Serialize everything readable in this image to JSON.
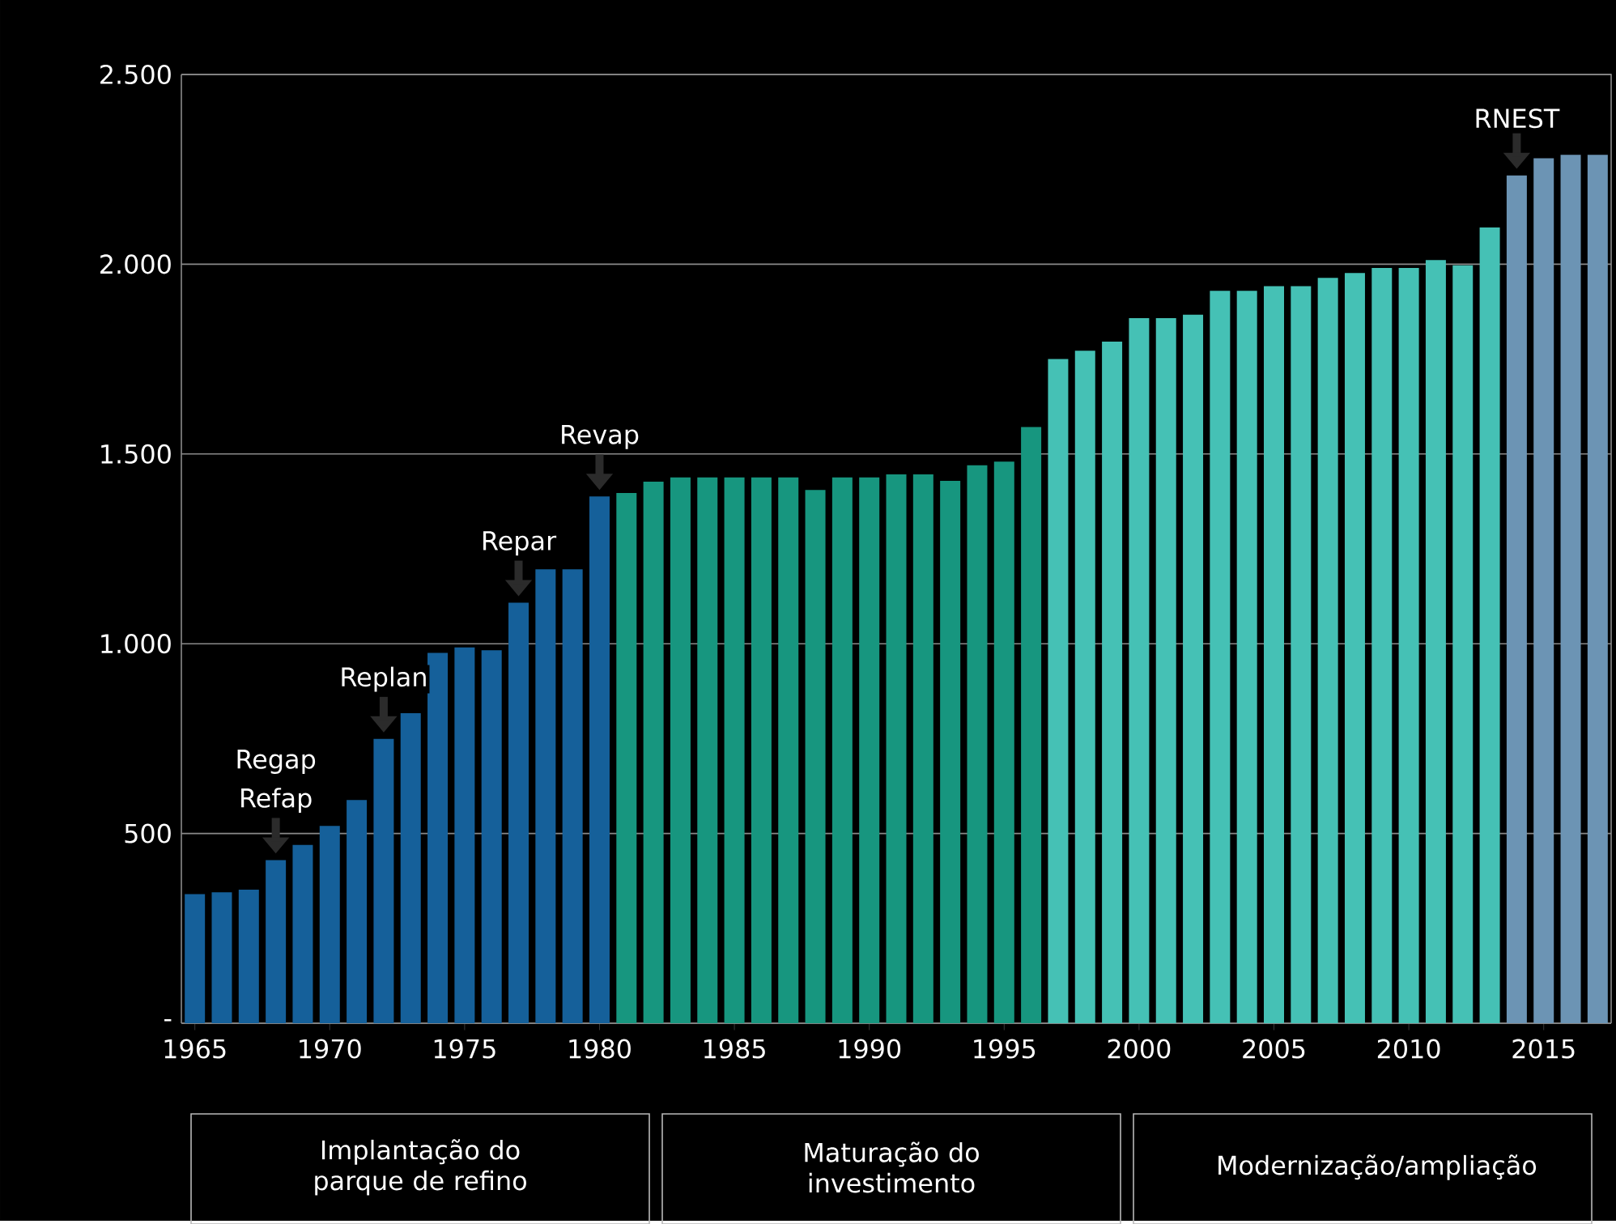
{
  "chart_data": {
    "type": "bar",
    "x": [
      1965,
      1966,
      1967,
      1968,
      1969,
      1970,
      1971,
      1972,
      1973,
      1974,
      1975,
      1976,
      1977,
      1978,
      1979,
      1980,
      1981,
      1982,
      1983,
      1984,
      1985,
      1986,
      1987,
      1988,
      1989,
      1990,
      1991,
      1992,
      1993,
      1994,
      1995,
      1996,
      1997,
      1998,
      1999,
      2000,
      2001,
      2002,
      2003,
      2004,
      2005,
      2006,
      2007,
      2008,
      2009,
      2010,
      2011,
      2012,
      2013,
      2014,
      2015,
      2016,
      2017
    ],
    "values": [
      340,
      345,
      352,
      430,
      470,
      520,
      588,
      749,
      817,
      976,
      990,
      983,
      1108,
      1196,
      1196,
      1388,
      1397,
      1427,
      1438,
      1438,
      1438,
      1438,
      1438,
      1405,
      1438,
      1438,
      1446,
      1446,
      1429,
      1470,
      1480,
      1571,
      1750,
      1772,
      1796,
      1858,
      1858,
      1867,
      1930,
      1930,
      1942,
      1942,
      1964,
      1977,
      1990,
      1990,
      2011,
      1997,
      2097,
      2234,
      2279,
      2288,
      2288
    ],
    "colors": [
      "#15609a",
      "#15609a",
      "#15609a",
      "#15609a",
      "#15609a",
      "#15609a",
      "#15609a",
      "#15609a",
      "#15609a",
      "#15609a",
      "#15609a",
      "#15609a",
      "#15609a",
      "#15609a",
      "#15609a",
      "#15609a",
      "#17967f",
      "#17967f",
      "#17967f",
      "#17967f",
      "#17967f",
      "#17967f",
      "#17967f",
      "#17967f",
      "#17967f",
      "#17967f",
      "#17967f",
      "#17967f",
      "#17967f",
      "#17967f",
      "#17967f",
      "#17967f",
      "#45c1b5",
      "#45c1b5",
      "#45c1b5",
      "#45c1b5",
      "#45c1b5",
      "#45c1b5",
      "#45c1b5",
      "#45c1b5",
      "#45c1b5",
      "#45c1b5",
      "#45c1b5",
      "#45c1b5",
      "#45c1b5",
      "#45c1b5",
      "#45c1b5",
      "#45c1b5",
      "#45c1b5",
      "#6c94b4",
      "#6c94b4",
      "#6c94b4",
      "#6c94b4"
    ],
    "xlim": [
      1964.5,
      2017.5
    ],
    "xticks": [
      1965,
      1970,
      1975,
      1980,
      1985,
      1990,
      1995,
      2000,
      2005,
      2010,
      2015
    ],
    "ylim": [
      0,
      2500
    ],
    "yticks": [
      {
        "value": 0,
        "label": "-"
      },
      500,
      {
        "value": 1000,
        "label": "1.000"
      },
      {
        "value": 1500,
        "label": "1.500"
      },
      {
        "value": 2000,
        "label": "2.000"
      },
      {
        "value": 2500,
        "label": "2.500"
      }
    ],
    "grid": "y",
    "annotations": [
      {
        "text": "Refap",
        "x": 1968,
        "y": 430
      },
      "Regap",
      {
        "text": "Replan",
        "x": 1972,
        "y": 749
      },
      {
        "text": "Repar",
        "x": 1977,
        "y": 1108
      },
      {
        "text": "Revap",
        "x": 1980,
        "y": 1388
      },
      {
        "text": "RNEST",
        "x": 2014,
        "y": 2234
      },
      "Implantação do parque de refino",
      "Maturação do investimento",
      "Modernização/ampliação"
    ]
  }
}
